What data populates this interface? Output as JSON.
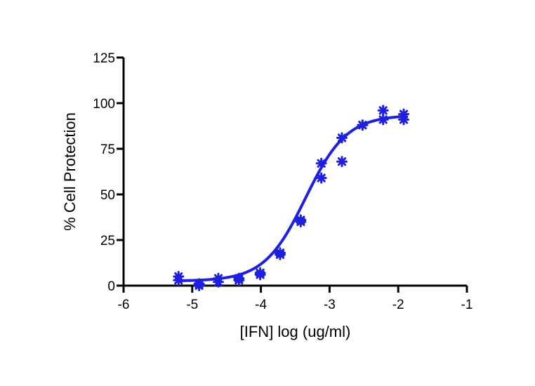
{
  "chart_data": {
    "type": "scatter",
    "title": "",
    "xlabel": "[IFN] log (ug/ml)",
    "ylabel": "% Cell Protection",
    "xlim": [
      -6,
      -1
    ],
    "ylim": [
      0,
      125
    ],
    "xticks": [
      -6,
      -5,
      -4,
      -3,
      -2,
      -1
    ],
    "yticks": [
      0,
      25,
      50,
      75,
      100,
      125
    ],
    "xtick_labels": [
      "-6",
      "-5",
      "-4",
      "-3",
      "-2",
      "-1"
    ],
    "ytick_labels": [
      "0",
      "25",
      "50",
      "75",
      "100",
      "125"
    ],
    "grid": false,
    "legend": "none",
    "marker": "asterisk",
    "color": "#1f1fe0",
    "points": [
      {
        "x": -5.2,
        "y": 5
      },
      {
        "x": -5.2,
        "y": 3
      },
      {
        "x": -4.9,
        "y": 1
      },
      {
        "x": -4.9,
        "y": 0
      },
      {
        "x": -4.62,
        "y": 4
      },
      {
        "x": -4.62,
        "y": 2
      },
      {
        "x": -4.32,
        "y": 4
      },
      {
        "x": -4.32,
        "y": 3
      },
      {
        "x": -4.01,
        "y": 7
      },
      {
        "x": -4.01,
        "y": 6
      },
      {
        "x": -3.72,
        "y": 18
      },
      {
        "x": -3.72,
        "y": 17
      },
      {
        "x": -3.42,
        "y": 35
      },
      {
        "x": -3.42,
        "y": 36
      },
      {
        "x": -3.12,
        "y": 67
      },
      {
        "x": -3.12,
        "y": 59
      },
      {
        "x": -2.82,
        "y": 81
      },
      {
        "x": -2.82,
        "y": 68
      },
      {
        "x": -2.52,
        "y": 88
      },
      {
        "x": -2.52,
        "y": 88
      },
      {
        "x": -2.22,
        "y": 96
      },
      {
        "x": -2.22,
        "y": 91
      },
      {
        "x": -1.92,
        "y": 94
      },
      {
        "x": -1.92,
        "y": 91
      }
    ],
    "fit": {
      "model": "sigmoidal dose-response",
      "bottom": 2.5,
      "top": 93.5,
      "logEC50": -3.35,
      "hill_slope": 1.45,
      "x_range": [
        -5.2,
        -1.92
      ]
    }
  }
}
